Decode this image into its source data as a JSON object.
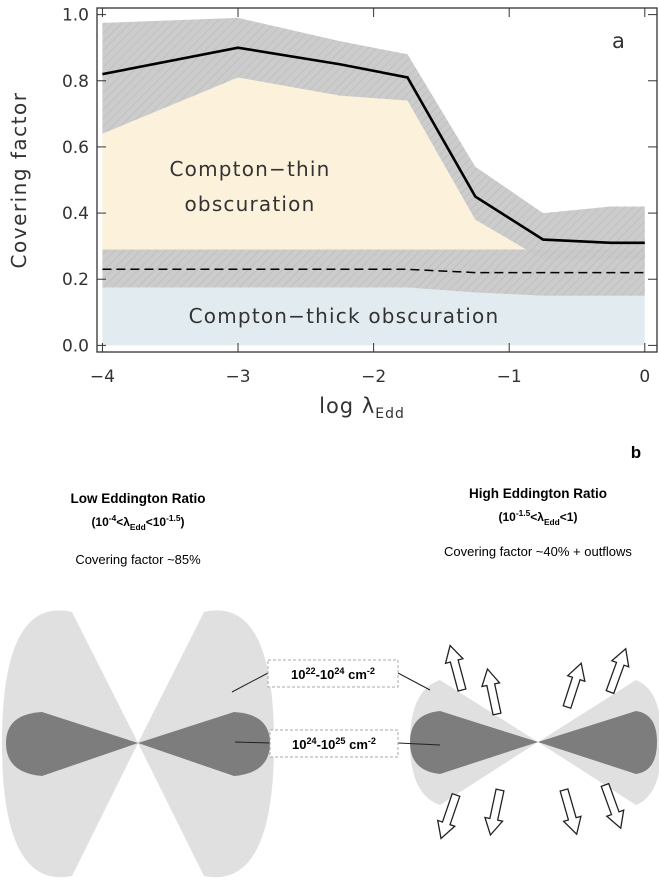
{
  "chart_data": {
    "type": "line",
    "panel_label": "a",
    "ylabel": "Covering factor",
    "xlabel": "log λ",
    "xlabel_subscript": "Edd",
    "x": [
      -4,
      -3,
      -2.25,
      -1.75,
      -1.25,
      -0.75,
      -0.25,
      0
    ],
    "series": [
      {
        "color": "#000000",
        "dashed": false,
        "band_color": "#c8c8c8",
        "values": [
          0.82,
          0.9,
          0.85,
          0.81,
          0.45,
          0.32,
          0.31,
          0.31
        ],
        "upper": [
          0.975,
          0.99,
          0.92,
          0.88,
          0.54,
          0.4,
          0.42,
          0.42
        ],
        "lower": [
          0.64,
          0.81,
          0.755,
          0.74,
          0.38,
          0.26,
          0.26,
          0.26
        ]
      },
      {
        "color": "#000000",
        "dashed": true,
        "band_color": "#c8c8c8",
        "values": [
          0.23,
          0.23,
          0.23,
          0.23,
          0.22,
          0.22,
          0.22,
          0.22
        ],
        "upper": [
          0.29,
          0.29,
          0.29,
          0.29,
          0.29,
          0.29,
          0.29,
          0.29
        ],
        "lower": [
          0.175,
          0.175,
          0.175,
          0.175,
          0.16,
          0.15,
          0.15,
          0.15
        ]
      }
    ],
    "regions": [
      {
        "label_lines": [
          "Compton−thin",
          "obscuration"
        ],
        "color": "#fcf2dc"
      },
      {
        "label_lines": [
          "Compton−thick obscuration"
        ],
        "color": "#e2ecf0"
      }
    ],
    "xlim": [
      -4.04,
      0.09
    ],
    "ylim": [
      -0.02,
      1.02
    ],
    "xticks": [
      {
        "value": -4,
        "label": "−4"
      },
      {
        "value": -3,
        "label": "−3"
      },
      {
        "value": -2,
        "label": "−2"
      },
      {
        "value": -1,
        "label": "−1"
      },
      0
    ],
    "yticks": [
      {
        "value": 0,
        "label": "0.0"
      },
      0.2,
      0.4,
      0.6,
      0.8,
      {
        "value": 1,
        "label": "1.0"
      }
    ]
  },
  "diagram": {
    "panel_label": "b",
    "panels": [
      {
        "title": "Low Eddington Ratio",
        "range": [
          {
            "text": "(10",
            "style": "normal"
          },
          {
            "text": "-4",
            "style": "sup"
          },
          {
            "text": "<λ",
            "style": "normal"
          },
          {
            "text": "Edd",
            "style": "sub"
          },
          {
            "text": "<10",
            "style": "normal"
          },
          {
            "text": "-1.5",
            "style": "sup"
          },
          {
            "text": ")",
            "style": "normal"
          }
        ],
        "covering": "Covering factor ~85%"
      },
      {
        "title": "High Eddington Ratio",
        "range": [
          {
            "text": "(10",
            "style": "normal"
          },
          {
            "text": "-1.5",
            "style": "sup"
          },
          {
            "text": "<λ",
            "style": "normal"
          },
          {
            "text": "Edd",
            "style": "sub"
          },
          {
            "text": "<1)",
            "style": "normal"
          }
        ],
        "covering": "Covering factor ~40% + outflows"
      }
    ],
    "column_densities": [
      [
        {
          "text": "10",
          "style": "normal"
        },
        {
          "text": "22",
          "style": "sup"
        },
        {
          "text": "-10",
          "style": "normal"
        },
        {
          "text": "24",
          "style": "sup"
        },
        {
          "text": " cm",
          "style": "normal"
        },
        {
          "text": "-2",
          "style": "sup"
        }
      ],
      [
        {
          "text": "10",
          "style": "normal"
        },
        {
          "text": "24",
          "style": "sup"
        },
        {
          "text": "-10",
          "style": "normal"
        },
        {
          "text": "25",
          "style": "sup"
        },
        {
          "text": " cm",
          "style": "normal"
        },
        {
          "text": "-2",
          "style": "sup"
        }
      ]
    ]
  }
}
